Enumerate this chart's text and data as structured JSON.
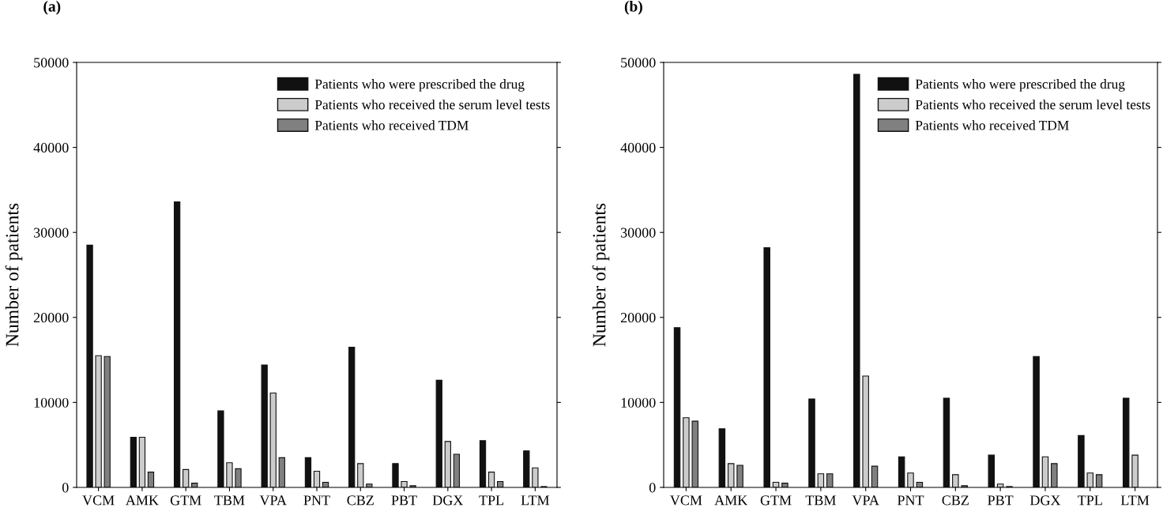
{
  "chart_data": [
    {
      "type": "bar",
      "title": "(a)",
      "ylabel": "Number of patients",
      "categories": [
        "VCM",
        "AMK",
        "GTM",
        "TBM",
        "VPA",
        "PNT",
        "CBZ",
        "PBT",
        "DGX",
        "TPL",
        "LTM"
      ],
      "series": [
        {
          "name": "Patients who were prescribed the drug",
          "color": "#111111",
          "values": [
            28500,
            5900,
            33600,
            9000,
            14400,
            3500,
            16500,
            2800,
            12600,
            5500,
            4300
          ]
        },
        {
          "name": "Patients who received the serum level tests",
          "color": "#cccccc",
          "values": [
            15500,
            5900,
            2100,
            2900,
            11100,
            1900,
            2800,
            700,
            5400,
            1800,
            2300
          ]
        },
        {
          "name": "Patients who received TDM",
          "color": "#808080",
          "values": [
            15400,
            1800,
            500,
            2200,
            3500,
            600,
            400,
            200,
            3900,
            700,
            100
          ]
        }
      ],
      "ylim": [
        0,
        50000
      ],
      "yticks": [
        0,
        10000,
        20000,
        30000,
        40000,
        50000
      ],
      "grid": false,
      "legend": "top right"
    },
    {
      "type": "bar",
      "title": "(b)",
      "ylabel": "Number of patients",
      "categories": [
        "VCM",
        "AMK",
        "GTM",
        "TBM",
        "VPA",
        "PNT",
        "CBZ",
        "PBT",
        "DGX",
        "TPL",
        "LTM"
      ],
      "series": [
        {
          "name": "Patients who were prescribed the drug",
          "color": "#111111",
          "values": [
            18800,
            6900,
            28200,
            10400,
            48600,
            3600,
            10500,
            3800,
            15400,
            6100,
            10500
          ]
        },
        {
          "name": "Patients who received the serum level tests",
          "color": "#cccccc",
          "values": [
            8200,
            2800,
            600,
            1600,
            13100,
            1700,
            1500,
            400,
            3600,
            1700,
            3800
          ]
        },
        {
          "name": "Patients who received TDM",
          "color": "#808080",
          "values": [
            7800,
            2600,
            500,
            1600,
            2500,
            600,
            200,
            100,
            2800,
            1500,
            null
          ]
        }
      ],
      "ylim": [
        0,
        50000
      ],
      "yticks": [
        0,
        10000,
        20000,
        30000,
        40000,
        50000
      ],
      "grid": false,
      "legend": "top right"
    }
  ]
}
